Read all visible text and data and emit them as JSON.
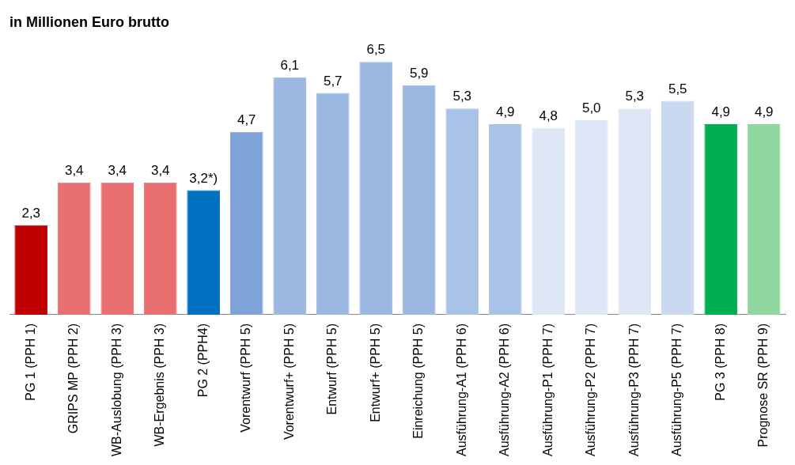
{
  "chart_data": {
    "type": "bar",
    "title": "in Millionen Euro brutto",
    "categories": [
      "PG 1 (PPH 1)",
      "GRIPS MP (PPH 2)",
      "WB-Auslobung (PPH 3)",
      "WB-Ergebnis (PPH 3)",
      "PG 2 (PPH4)",
      "Vorentwurf (PPH 5)",
      "Vorentwurf+ (PPH 5)",
      "Entwurf (PPH 5)",
      "Entwurf+ (PPH 5)",
      "Einreichung (PPH 5)",
      "Ausführung-A1 (PPH 6)",
      "Ausführung-A2 (PPH 6)",
      "Ausführung-P1 (PPH 7)",
      "Ausführung-P2 (PPH 7)",
      "Ausführung-P3 (PPH 7)",
      "Ausführung-P5 (PPH 7)",
      "PG 3 (PPH 8)",
      "Prognose SR (PPH 9)"
    ],
    "values": [
      2.3,
      3.4,
      3.4,
      3.4,
      3.2,
      4.7,
      6.1,
      5.7,
      6.5,
      5.9,
      5.3,
      4.9,
      4.8,
      5.0,
      5.3,
      5.5,
      4.9,
      4.9
    ],
    "value_labels": [
      "2,3",
      "3,4",
      "3,4",
      "3,4",
      "3,2*)",
      "4,7",
      "6,1",
      "5,7",
      "6,5",
      "5,9",
      "5,3",
      "4,9",
      "4,8",
      "5,0",
      "5,3",
      "5,5",
      "4,9",
      "4,9"
    ],
    "colors": [
      "#c00000",
      "#e87070",
      "#e87070",
      "#e87070",
      "#0070c0",
      "#7da3d8",
      "#9ab8e2",
      "#9ab8e2",
      "#9ab8e2",
      "#9ab8e2",
      "#a9c3e8",
      "#a9c3e8",
      "#dde7f5",
      "#dde7f5",
      "#dde7f5",
      "#c9d8ee",
      "#00b050",
      "#8fd9a0"
    ],
    "grid": false,
    "legend": false
  }
}
